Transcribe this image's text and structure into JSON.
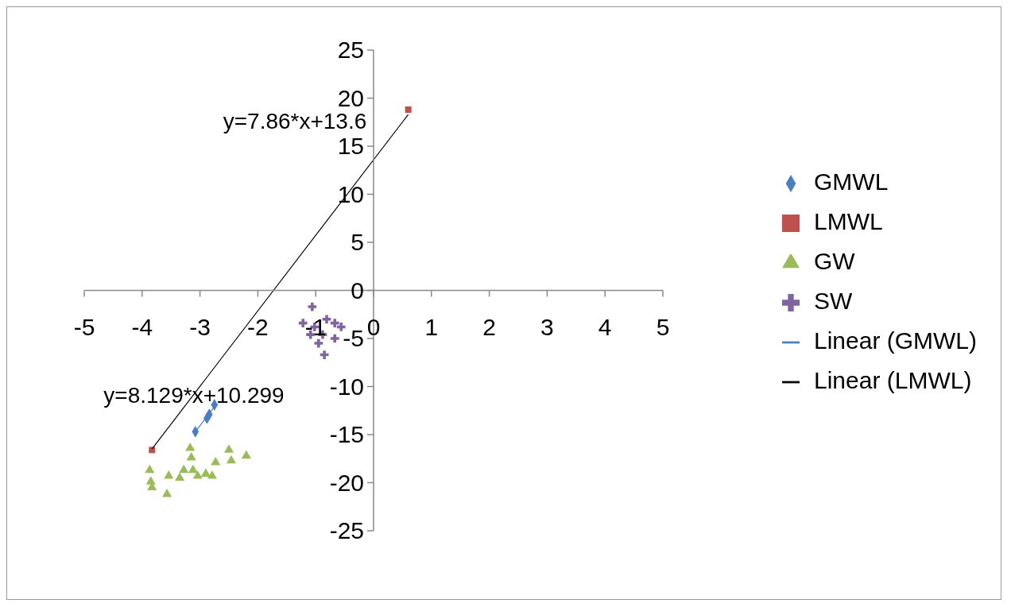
{
  "chart_data": {
    "type": "scatter",
    "xlim": [
      -5,
      5
    ],
    "ylim": [
      -25,
      25
    ],
    "xticks": [
      -5,
      -4,
      -3,
      -2,
      -1,
      0,
      1,
      2,
      3,
      4,
      5
    ],
    "yticks": [
      -25,
      -20,
      -15,
      -10,
      -5,
      0,
      5,
      10,
      15,
      20,
      25
    ],
    "grid": false,
    "legend": "right",
    "annotations": [
      "y=7.86*x+13.6",
      "y=8.129*x+10.299"
    ],
    "series": [
      {
        "name": "GMWL",
        "marker": "diamond",
        "color": "#4a7fc1",
        "x": [
          -2.75,
          -2.84,
          -2.88,
          -3.08
        ],
        "values": [
          -11.9,
          -12.9,
          -13.3,
          -14.7
        ]
      },
      {
        "name": "LMWL",
        "marker": "square",
        "color": "#c0504d",
        "x": [
          -3.83,
          0.6
        ],
        "values": [
          -16.6,
          18.8
        ]
      },
      {
        "name": "GW",
        "marker": "triangle",
        "color": "#9bbb59",
        "x": [
          -3.87,
          -3.85,
          -3.83,
          -3.57,
          -3.54,
          -3.35,
          -3.17,
          -3.15,
          -3.12,
          -3.04,
          -2.9,
          -2.79,
          -2.73,
          -2.5,
          -2.46,
          -2.2,
          -3.28
        ],
        "values": [
          -18.7,
          -19.9,
          -20.5,
          -21.2,
          -19.3,
          -19.5,
          -16.4,
          -17.4,
          -18.7,
          -19.3,
          -19.1,
          -19.3,
          -17.9,
          -16.6,
          -17.7,
          -17.2,
          -18.7
        ]
      },
      {
        "name": "SW",
        "marker": "cross",
        "color": "#8064a2",
        "x": [
          -1.06,
          -1.22,
          -1.02,
          -0.81,
          -0.67,
          -0.56,
          -0.88,
          -0.67,
          -0.95,
          -0.85,
          -1.09
        ],
        "values": [
          -1.7,
          -3.4,
          -3.8,
          -3.0,
          -3.4,
          -3.8,
          -4.6,
          -5.0,
          -5.5,
          -6.7,
          -4.6
        ]
      },
      {
        "name": "Linear (GMWL)",
        "type": "line",
        "marker": "none",
        "color": "#4a7fc1",
        "x": [
          -3.08,
          -2.75
        ],
        "values": [
          -14.7,
          -12.1
        ]
      },
      {
        "name": "Linear (LMWL)",
        "type": "line",
        "marker": "none",
        "color": "#000000",
        "x": [
          -3.83,
          0.6
        ],
        "values": [
          -16.5,
          18.3
        ]
      }
    ]
  }
}
